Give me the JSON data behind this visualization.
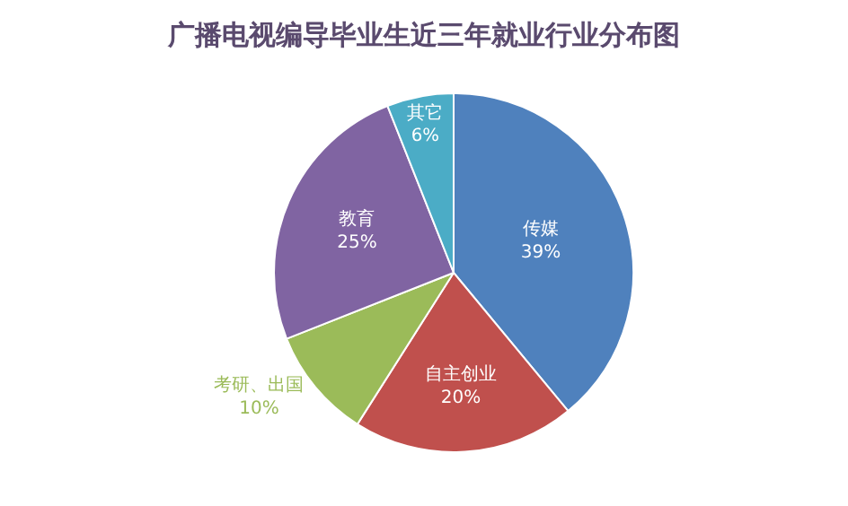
{
  "chart_data": {
    "type": "pie",
    "title": "广播电视编导毕业生近三年就业行业分布图",
    "categories": [
      "传媒",
      "自主创业",
      "考研、出国",
      "教育",
      "其它"
    ],
    "values": [
      39,
      20,
      10,
      25,
      6
    ],
    "colors": [
      "#4f81bd",
      "#c0504d",
      "#9bbb59",
      "#8064a2",
      "#4bacc6"
    ],
    "value_labels": [
      "39%",
      "20%",
      "10%",
      "25%",
      "6%"
    ],
    "legend": false
  }
}
